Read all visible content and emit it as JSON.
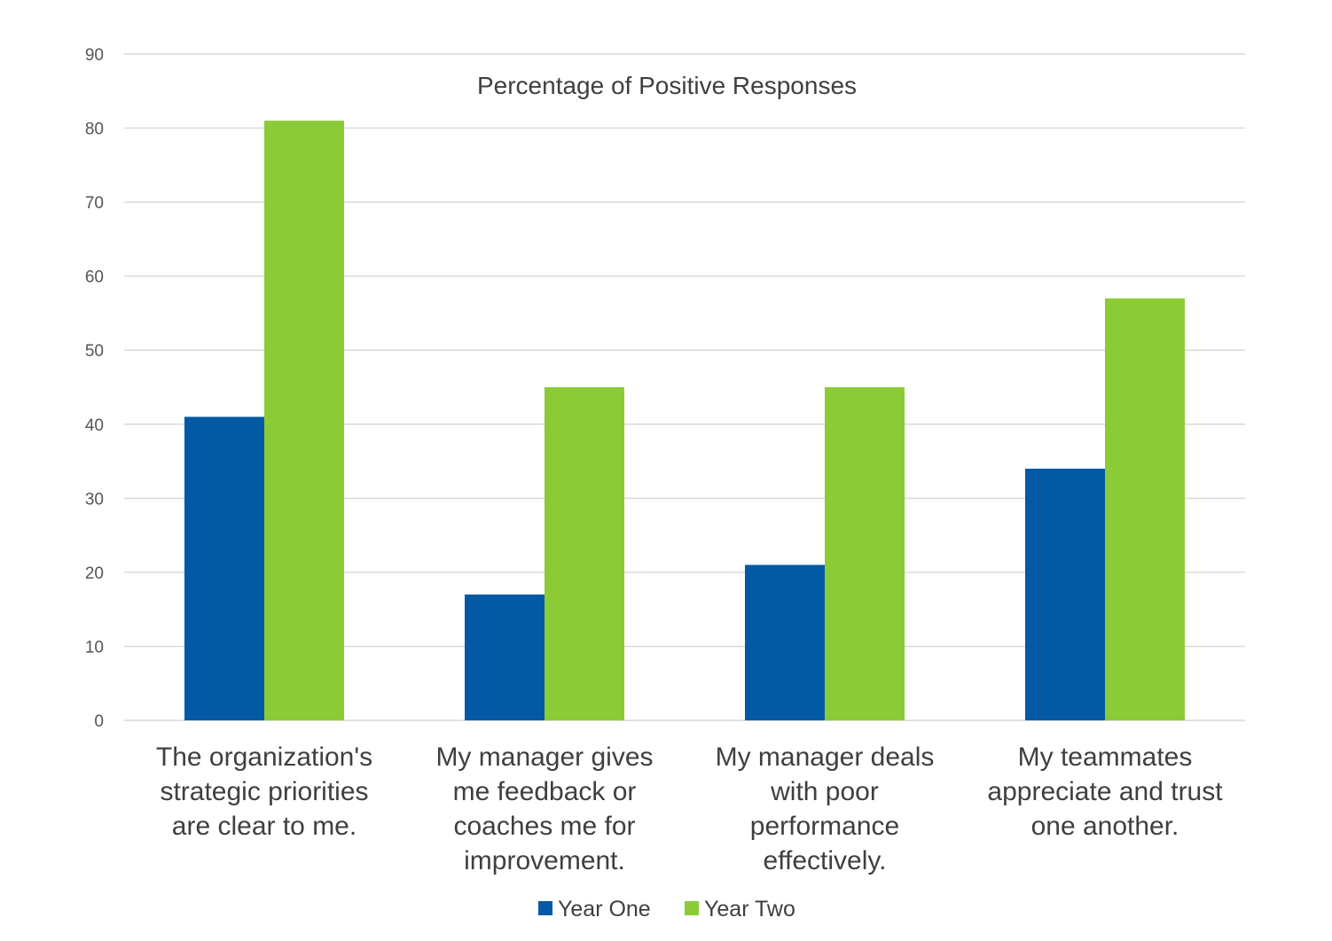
{
  "chart_data": {
    "type": "bar",
    "title": "Percentage of Positive Responses",
    "categories": [
      [
        "The organization's",
        "strategic priorities",
        "are clear to me."
      ],
      [
        "My manager gives",
        "me feedback or",
        "coaches me for",
        "improvement."
      ],
      [
        "My manager deals",
        "with poor",
        "performance",
        "effectively."
      ],
      [
        "My teammates",
        "appreciate and trust",
        "one another."
      ]
    ],
    "series": [
      {
        "name": "Year One",
        "color": "#0459A5",
        "values": [
          41,
          17,
          21,
          34
        ]
      },
      {
        "name": "Year Two",
        "color": "#8BCB36",
        "values": [
          81,
          45,
          45,
          57
        ]
      }
    ],
    "xlabel": "",
    "ylabel": "",
    "ylim": [
      0,
      90
    ],
    "yticks": [
      0,
      10,
      20,
      30,
      40,
      50,
      60,
      70,
      80,
      90
    ],
    "grid": true,
    "legend_position": "bottom"
  }
}
